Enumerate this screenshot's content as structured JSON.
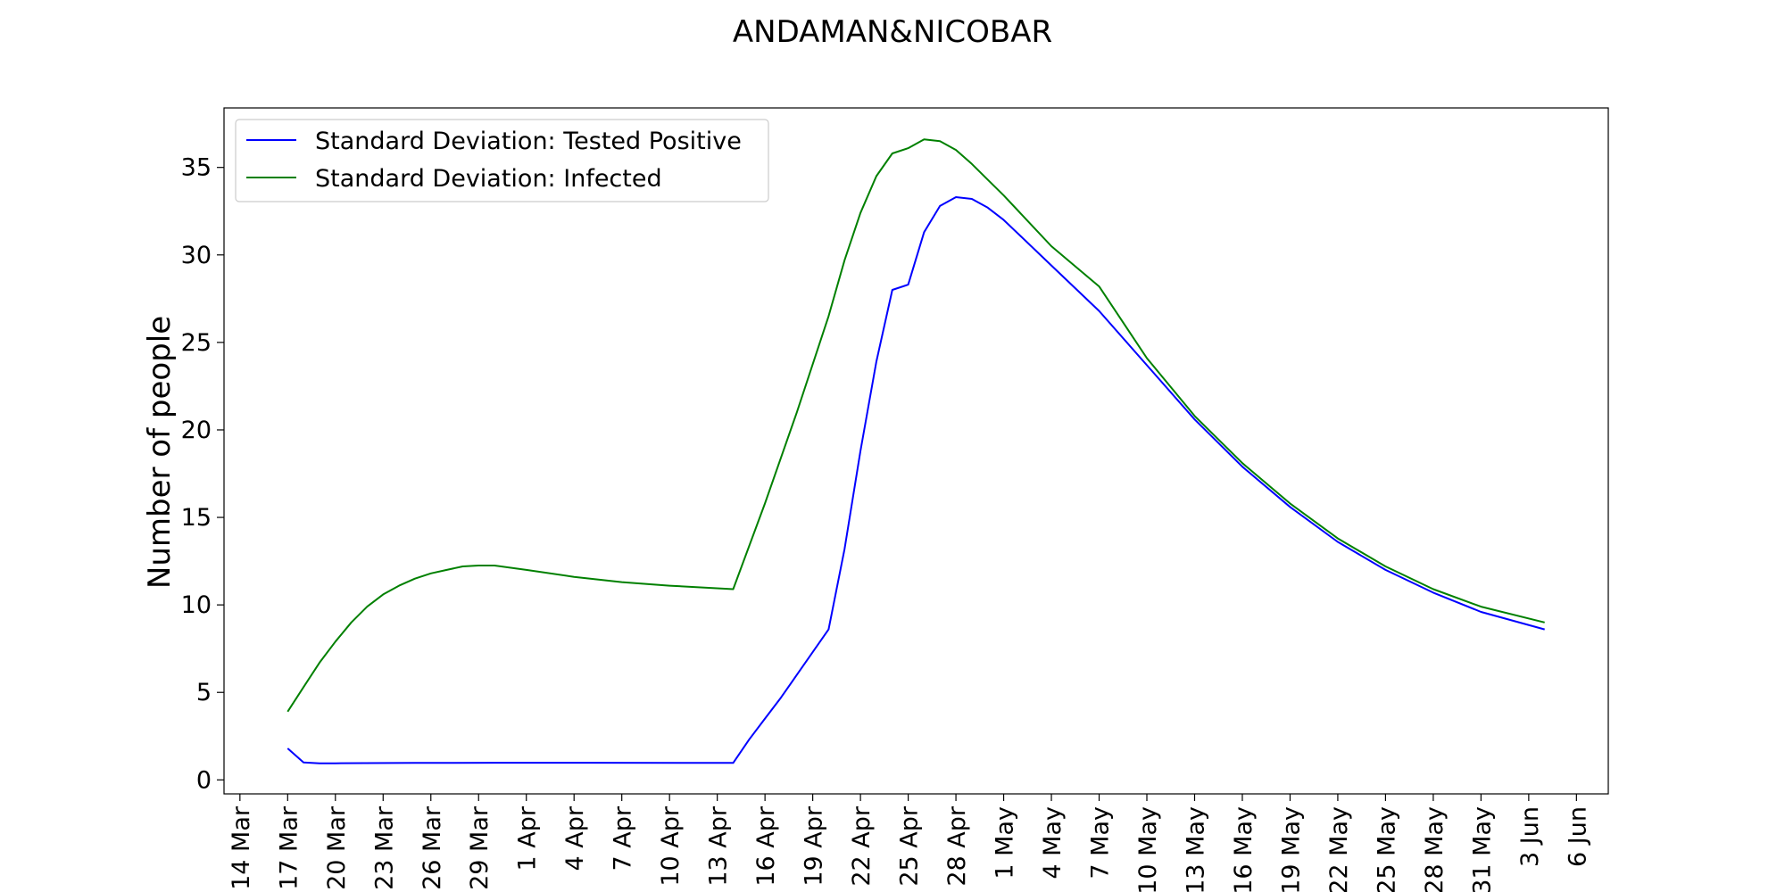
{
  "chart_data": {
    "type": "line",
    "title": "ANDAMAN&NICOBAR",
    "xlabel": "",
    "ylabel": "Number of people",
    "x_ticks": [
      "14 Mar",
      "17 Mar",
      "20 Mar",
      "23 Mar",
      "26 Mar",
      "29 Mar",
      "1 Apr",
      "4 Apr",
      "7 Apr",
      "10 Apr",
      "13 Apr",
      "16 Apr",
      "19 Apr",
      "22 Apr",
      "25 Apr",
      "28 Apr",
      "1 May",
      "4 May",
      "7 May",
      "10 May",
      "13 May",
      "16 May",
      "19 May",
      "22 May",
      "25 May",
      "28 May",
      "31 May",
      "3 Jun",
      "6 Jun"
    ],
    "y_ticks": [
      0,
      5,
      10,
      15,
      20,
      25,
      30,
      35
    ],
    "xlim": [
      "2020-03-13",
      "2020-06-08"
    ],
    "ylim": [
      -0.8,
      38.4
    ],
    "grid": false,
    "legend_position": "top-left",
    "series": [
      {
        "name": "Standard Deviation: Tested Positive",
        "color": "#0000ff",
        "points": [
          [
            "2020-03-17",
            1.8
          ],
          [
            "2020-03-18",
            1.0
          ],
          [
            "2020-03-19",
            0.95
          ],
          [
            "2020-03-20",
            0.95
          ],
          [
            "2020-03-25",
            0.97
          ],
          [
            "2020-03-30",
            0.98
          ],
          [
            "2020-04-05",
            0.98
          ],
          [
            "2020-04-14",
            0.97
          ],
          [
            "2020-04-15",
            2.3
          ],
          [
            "2020-04-16",
            3.5
          ],
          [
            "2020-04-17",
            4.7
          ],
          [
            "2020-04-18",
            6.0
          ],
          [
            "2020-04-19",
            7.3
          ],
          [
            "2020-04-20",
            8.6
          ],
          [
            "2020-04-21",
            13.2
          ],
          [
            "2020-04-22",
            18.8
          ],
          [
            "2020-04-23",
            23.9
          ],
          [
            "2020-04-24",
            28.0
          ],
          [
            "2020-04-25",
            28.3
          ],
          [
            "2020-04-26",
            31.3
          ],
          [
            "2020-04-27",
            32.8
          ],
          [
            "2020-04-28",
            33.3
          ],
          [
            "2020-04-29",
            33.2
          ],
          [
            "2020-04-30",
            32.7
          ],
          [
            "2020-05-01",
            32.0
          ],
          [
            "2020-05-04",
            29.4
          ],
          [
            "2020-05-07",
            26.8
          ],
          [
            "2020-05-10",
            23.7
          ],
          [
            "2020-05-13",
            20.6
          ],
          [
            "2020-05-16",
            17.9
          ],
          [
            "2020-05-19",
            15.6
          ],
          [
            "2020-05-22",
            13.6
          ],
          [
            "2020-05-25",
            12.0
          ],
          [
            "2020-05-28",
            10.7
          ],
          [
            "2020-05-31",
            9.6
          ],
          [
            "2020-06-04",
            8.6
          ]
        ]
      },
      {
        "name": "Standard Deviation: Infected",
        "color": "#008000",
        "points": [
          [
            "2020-03-17",
            3.9
          ],
          [
            "2020-03-18",
            5.3
          ],
          [
            "2020-03-19",
            6.7
          ],
          [
            "2020-03-20",
            7.9
          ],
          [
            "2020-03-21",
            9.0
          ],
          [
            "2020-03-22",
            9.9
          ],
          [
            "2020-03-23",
            10.6
          ],
          [
            "2020-03-24",
            11.1
          ],
          [
            "2020-03-25",
            11.5
          ],
          [
            "2020-03-26",
            11.8
          ],
          [
            "2020-03-27",
            12.0
          ],
          [
            "2020-03-28",
            12.2
          ],
          [
            "2020-03-29",
            12.25
          ],
          [
            "2020-03-30",
            12.25
          ],
          [
            "2020-04-01",
            12.0
          ],
          [
            "2020-04-04",
            11.6
          ],
          [
            "2020-04-07",
            11.3
          ],
          [
            "2020-04-10",
            11.1
          ],
          [
            "2020-04-14",
            10.9
          ],
          [
            "2020-04-16",
            15.8
          ],
          [
            "2020-04-18",
            21.0
          ],
          [
            "2020-04-20",
            26.5
          ],
          [
            "2020-04-21",
            29.7
          ],
          [
            "2020-04-22",
            32.4
          ],
          [
            "2020-04-23",
            34.5
          ],
          [
            "2020-04-24",
            35.8
          ],
          [
            "2020-04-25",
            36.1
          ],
          [
            "2020-04-26",
            36.6
          ],
          [
            "2020-04-27",
            36.5
          ],
          [
            "2020-04-28",
            36.0
          ],
          [
            "2020-04-29",
            35.2
          ],
          [
            "2020-04-30",
            34.3
          ],
          [
            "2020-05-01",
            33.4
          ],
          [
            "2020-05-04",
            30.5
          ],
          [
            "2020-05-07",
            28.2
          ],
          [
            "2020-05-10",
            24.1
          ],
          [
            "2020-05-13",
            20.8
          ],
          [
            "2020-05-16",
            18.1
          ],
          [
            "2020-05-19",
            15.8
          ],
          [
            "2020-05-22",
            13.8
          ],
          [
            "2020-05-25",
            12.2
          ],
          [
            "2020-05-28",
            10.9
          ],
          [
            "2020-05-31",
            9.9
          ],
          [
            "2020-06-04",
            9.0
          ]
        ]
      }
    ]
  }
}
